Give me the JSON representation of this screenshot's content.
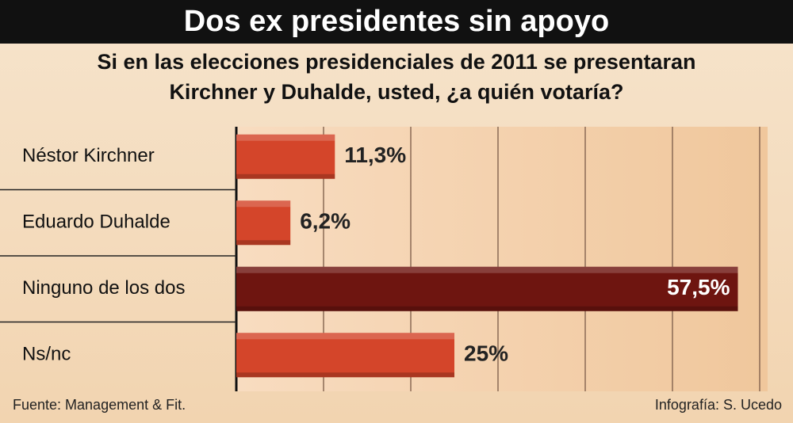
{
  "chart_data": {
    "type": "hbar",
    "title": "Dos ex presidentes sin apoyo",
    "subtitle": [
      "Si en las elecciones presidenciales de 2011 se presentaran",
      "Kirchner y Duhalde, usted, ¿a quién votaría?"
    ],
    "categories": [
      "Néstor Kirchner",
      "Eduardo Duhalde",
      "Ninguno de los dos",
      "Ns/nc"
    ],
    "values": [
      11.3,
      6.2,
      57.5,
      25
    ],
    "value_labels": [
      "11,3%",
      "6,2%",
      "57,5%",
      "25%"
    ],
    "colors": [
      "#d4452a",
      "#d4452a",
      "#6e1510",
      "#d4452a"
    ],
    "xlim": [
      0,
      60
    ],
    "xticks": [
      0,
      10,
      20,
      30,
      40,
      50,
      60
    ],
    "grid": true,
    "source": "Fuente: Management & Fit.",
    "credit": "Infografía: S. Ucedo"
  }
}
